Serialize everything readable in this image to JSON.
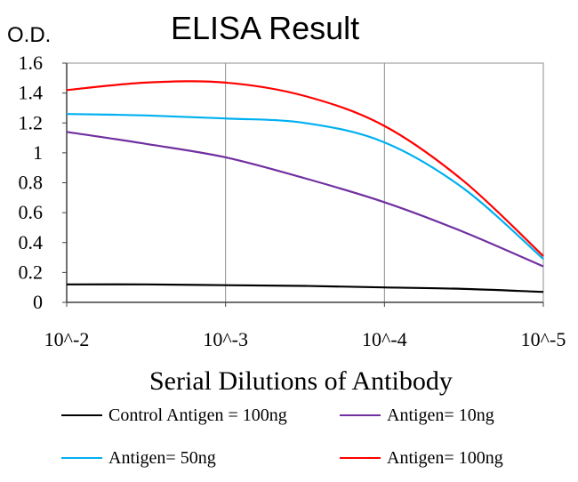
{
  "chart_data": {
    "type": "line",
    "title": "ELISA Result",
    "ylabel": "O.D.",
    "xlabel": "Serial Dilutions of Antibody",
    "x_ticks": [
      "10^-2",
      "10^-3",
      "10^-4",
      "10^-5"
    ],
    "y_ticks": [
      "0",
      "0.2",
      "0.4",
      "0.6",
      "0.8",
      "1",
      "1.2",
      "1.4",
      "1.6"
    ],
    "ylim": [
      0,
      1.6
    ],
    "grid": "vertical",
    "legend_position": "bottom",
    "x": [
      0,
      0.5,
      1,
      1.5,
      2,
      2.5,
      3
    ],
    "series": [
      {
        "name": "Control Antigen = 100ng",
        "color": "#000000",
        "values": [
          0.12,
          0.12,
          0.115,
          0.11,
          0.1,
          0.09,
          0.07
        ]
      },
      {
        "name": "Antigen= 10ng",
        "color": "#7030A0",
        "values": [
          1.14,
          1.06,
          0.97,
          0.83,
          0.67,
          0.47,
          0.24
        ]
      },
      {
        "name": "Antigen= 50ng",
        "color": "#00B0F0",
        "values": [
          1.26,
          1.25,
          1.23,
          1.2,
          1.07,
          0.76,
          0.29
        ]
      },
      {
        "name": "Antigen= 100ng",
        "color": "#FF0000",
        "values": [
          1.42,
          1.47,
          1.47,
          1.38,
          1.18,
          0.81,
          0.31
        ]
      }
    ]
  }
}
